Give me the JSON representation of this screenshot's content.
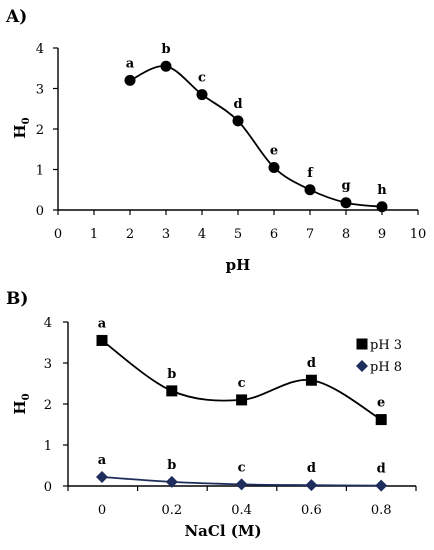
{
  "charts": [
    {
      "panel_label": "A)",
      "xlabel": "pH",
      "ylabel": "H",
      "ylabel_sub": "0",
      "chart_data": {
        "type": "line",
        "x": [
          2,
          3,
          4,
          5,
          6,
          7,
          8,
          9
        ],
        "series": [
          {
            "values": [
              3.2,
              3.55,
              2.85,
              2.2,
              1.05,
              0.5,
              0.18,
              0.08
            ],
            "labels": [
              "a",
              "b",
              "c",
              "d",
              "e",
              "f",
              "g",
              "h"
            ],
            "color": "#000000",
            "marker": "circle"
          }
        ],
        "xlim": [
          0,
          10
        ],
        "ylim": [
          0,
          4
        ],
        "xticks": [
          "0",
          "1",
          "2",
          "3",
          "4",
          "5",
          "6",
          "7",
          "8",
          "9",
          "10"
        ],
        "yticks": [
          "0",
          "1",
          "2",
          "3",
          "4"
        ],
        "grid": false
      }
    },
    {
      "panel_label": "B)",
      "xlabel": "NaCl (M)",
      "ylabel": "H",
      "ylabel_sub": "0",
      "chart_data": {
        "type": "line",
        "categories": [
          "0",
          "0.2",
          "0.4",
          "0.6",
          "0.8"
        ],
        "series": [
          {
            "name": "pH 3",
            "values": [
              3.55,
              2.32,
              2.1,
              2.58,
              1.62
            ],
            "labels": [
              "a",
              "b",
              "c",
              "d",
              "e"
            ],
            "color": "#000000",
            "marker": "square"
          },
          {
            "name": "pH 8",
            "values": [
              0.22,
              0.1,
              0.04,
              0.02,
              0.01
            ],
            "labels": [
              "a",
              "b",
              "c",
              "d",
              "d"
            ],
            "color": "#1f2d5c",
            "marker": "diamond"
          }
        ],
        "ylim": [
          0,
          4
        ],
        "yticks": [
          "0",
          "1",
          "2",
          "3",
          "4"
        ],
        "legend": "top-right",
        "grid": false
      }
    }
  ]
}
